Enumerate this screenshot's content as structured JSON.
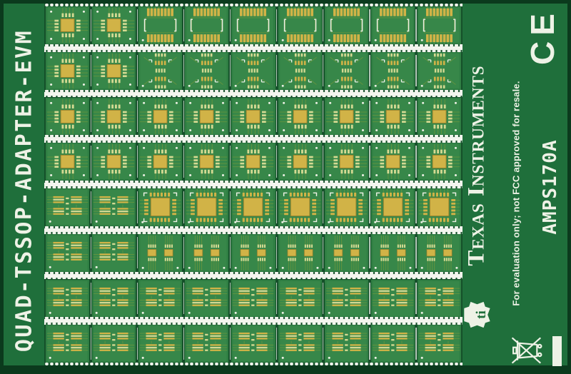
{
  "board": {
    "left_label": "QUAD-TSSOP-ADAPTER-EVM",
    "brand": "Texas Instruments",
    "disclaimer": "For evaluation only; not FCC approved for resale.",
    "part_number": "AMPS170A",
    "ce_mark": "CE",
    "icons": {
      "ti_logo": "ti-bug-logo",
      "weee": "weee-crossed-out-wheeled-bin"
    },
    "colors": {
      "border": "#0b3a1d",
      "rail": "#1f6f3b",
      "grid_dark": "#15502a",
      "cell": "#2f7e43",
      "cell_inner": "#378749",
      "trace": "#63943f",
      "pad_pale": "#d4d992",
      "gold": "#d1b347",
      "gold_dark": "#8f7c2b",
      "silk": "#eef2e6",
      "separator": "#f3f5ee"
    },
    "grid": {
      "cols": 9,
      "left_cols": 2,
      "rows": [
        {
          "left": "qfp",
          "rest": "soic"
        },
        {
          "left": "qfp",
          "rest": "sop4"
        },
        {
          "left": "qfp",
          "rest": "qfp"
        },
        {
          "left": "qfp",
          "rest": "qfp"
        },
        {
          "left": "fine",
          "rest": "qfnl"
        },
        {
          "left": "fine",
          "rest": "sopd"
        },
        {
          "left": "fine",
          "rest": "fine"
        },
        {
          "left": "fine",
          "rest": "fine"
        }
      ]
    }
  }
}
